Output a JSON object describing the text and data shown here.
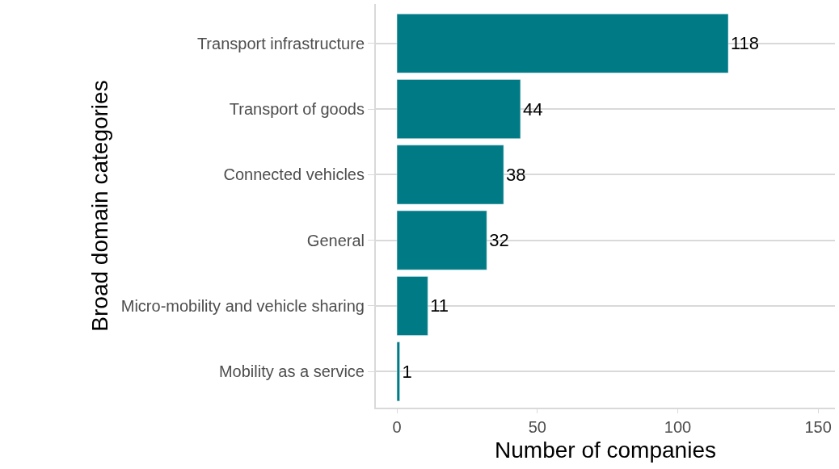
{
  "chart_data": {
    "type": "bar",
    "orientation": "horizontal",
    "xlabel": "Number of companies",
    "ylabel": "Broad domain categories",
    "categories": [
      "Transport infrastructure",
      "Transport of goods",
      "Connected vehicles",
      "General",
      "Micro-mobility and vehicle sharing",
      "Mobility as a service"
    ],
    "values": [
      118,
      44,
      38,
      32,
      11,
      1
    ],
    "color": "#007b85",
    "data_labels": true,
    "xlim": [
      -7.5,
      156
    ],
    "xticks": [
      0,
      50,
      100,
      150
    ],
    "grid": "y",
    "legend": false
  }
}
